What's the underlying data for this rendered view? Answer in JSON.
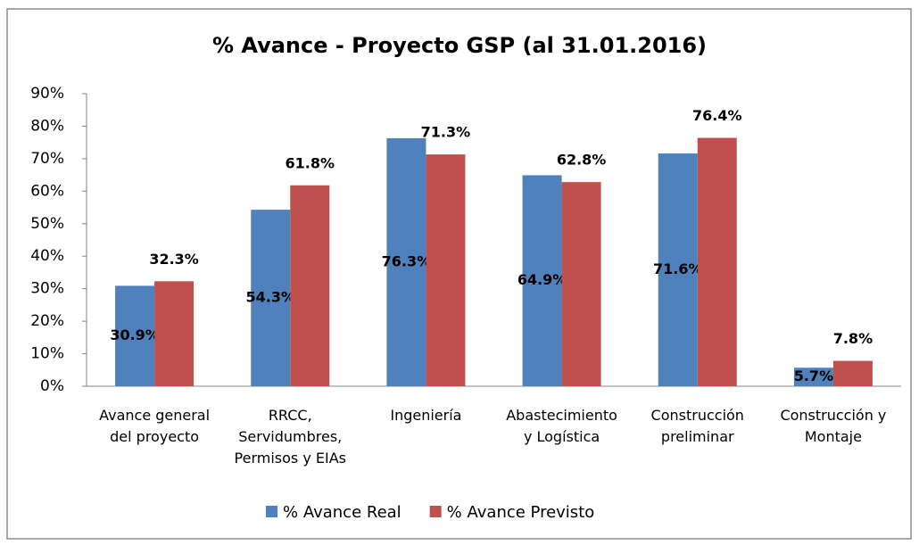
{
  "chart_data": {
    "type": "bar",
    "title": "% Avance - Proyecto GSP (al 31.01.2016)",
    "categories": [
      "Avance general\ndel proyecto",
      "RRCC,\nServidumbres,\nPermisos y EIAs",
      "Ingeniería",
      "Abastecimiento\ny Logística",
      "Construcción\npreliminar",
      "Construcción y\nMontaje"
    ],
    "series": [
      {
        "name": "% Avance Real",
        "color": "#4f81bd",
        "values": [
          30.9,
          54.3,
          76.3,
          64.9,
          71.6,
          5.7
        ],
        "value_labels": [
          "30.9%",
          "54.3%",
          "76.3%",
          "64.9%",
          "71.6%",
          "5.7%"
        ]
      },
      {
        "name": "% Avance Previsto",
        "color": "#c0504d",
        "values": [
          32.3,
          61.8,
          71.3,
          62.8,
          76.4,
          7.8
        ],
        "value_labels": [
          "32.3%",
          "61.8%",
          "71.3%",
          "62.8%",
          "76.4%",
          "7.8%"
        ]
      }
    ],
    "ylim": [
      0,
      90
    ],
    "yticks": [
      {
        "value": 0,
        "label": "0%"
      },
      {
        "value": 10,
        "label": "10%"
      },
      {
        "value": 20,
        "label": "20%"
      },
      {
        "value": 30,
        "label": "30%"
      },
      {
        "value": 40,
        "label": "40%"
      },
      {
        "value": 50,
        "label": "50%"
      },
      {
        "value": 60,
        "label": "60%"
      },
      {
        "value": 70,
        "label": "70%"
      },
      {
        "value": 80,
        "label": "80%"
      },
      {
        "value": 90,
        "label": "90%"
      }
    ],
    "grid": false,
    "legend": "bottom"
  }
}
